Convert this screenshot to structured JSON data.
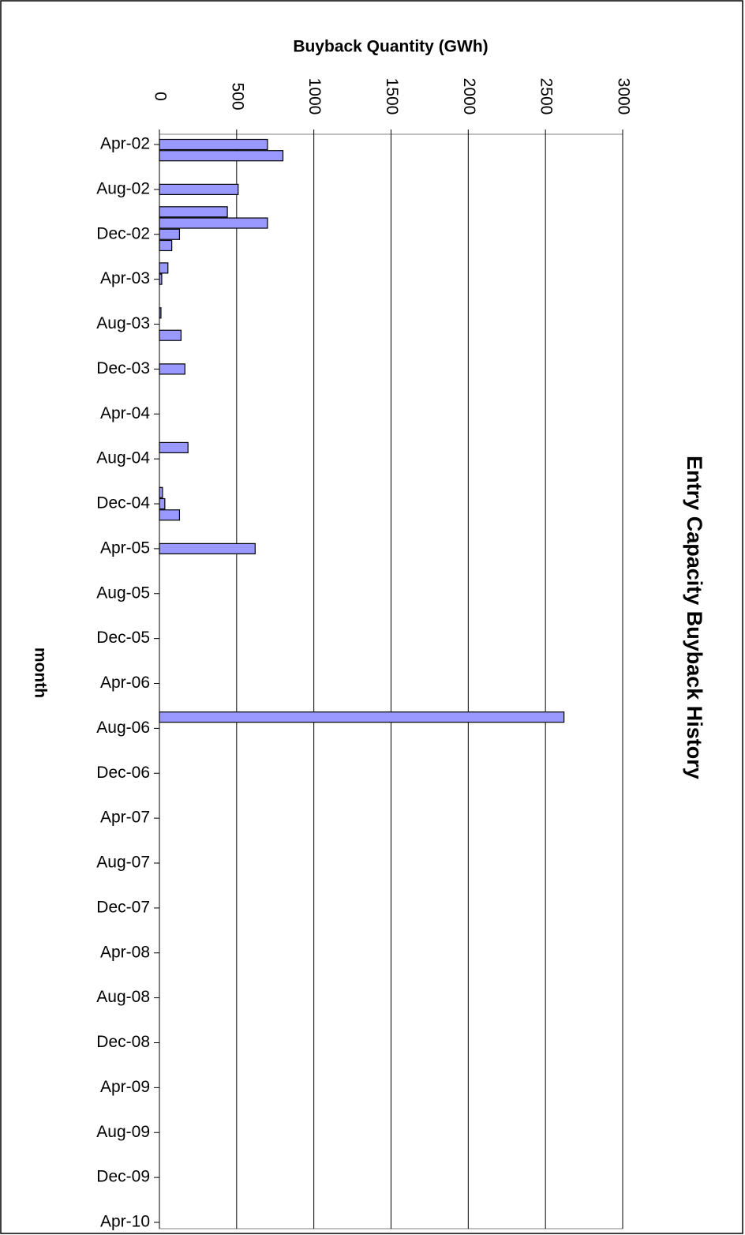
{
  "chart_data": {
    "type": "bar",
    "orientation": "horizontal",
    "title": "Entry Capacity Buyback History",
    "x_label": "Buyback Quantity (GWh)",
    "y_label": "month",
    "color": "#9999ff",
    "categories": [
      "Apr-02",
      null,
      null,
      null,
      "Aug-02",
      null,
      null,
      null,
      "Dec-02",
      null,
      null,
      null,
      "Apr-03",
      null,
      null,
      null,
      "Aug-03",
      null,
      null,
      null,
      "Dec-03",
      null,
      null,
      null,
      "Apr-04",
      null,
      null,
      null,
      "Aug-04",
      null,
      null,
      null,
      "Dec-04",
      null,
      null,
      null,
      "Apr-05",
      null,
      null,
      null,
      "Aug-05",
      null,
      null,
      null,
      "Dec-05",
      null,
      null,
      null,
      "Apr-06",
      null,
      null,
      null,
      "Aug-06",
      null,
      null,
      null,
      "Dec-06",
      null,
      null,
      null,
      "Apr-07",
      null,
      null,
      null,
      "Aug-07",
      null,
      null,
      null,
      "Dec-07",
      null,
      null,
      null,
      "Apr-08",
      null,
      null,
      null,
      "Aug-08",
      null,
      null,
      null,
      "Dec-08",
      null,
      null,
      null,
      "Apr-09",
      null,
      null,
      null,
      "Aug-09",
      null,
      null,
      null,
      "Dec-09",
      null,
      null,
      null,
      "Apr-10"
    ],
    "values": [
      700,
      800,
      null,
      null,
      510,
      null,
      440,
      700,
      130,
      80,
      null,
      55,
      15,
      null,
      null,
      10,
      null,
      140,
      null,
      null,
      165,
      null,
      null,
      null,
      null,
      null,
      null,
      185,
      null,
      null,
      null,
      20,
      35,
      130,
      null,
      null,
      620,
      null,
      null,
      null,
      null,
      null,
      null,
      null,
      null,
      null,
      null,
      null,
      null,
      null,
      null,
      2620,
      null,
      null,
      null,
      null,
      null,
      null,
      null,
      null,
      null,
      null,
      null,
      null,
      null,
      null,
      null,
      null,
      null,
      null,
      null,
      null,
      null,
      null,
      null,
      null,
      null,
      null,
      null,
      null,
      null,
      null,
      null,
      null,
      null,
      null,
      null,
      null,
      null,
      null,
      null,
      null,
      null,
      null,
      null,
      null,
      null
    ],
    "xlim": [
      0,
      3000
    ],
    "xticks": [
      0,
      500,
      1000,
      1500,
      2000,
      2500,
      3000
    ],
    "grid": true
  }
}
